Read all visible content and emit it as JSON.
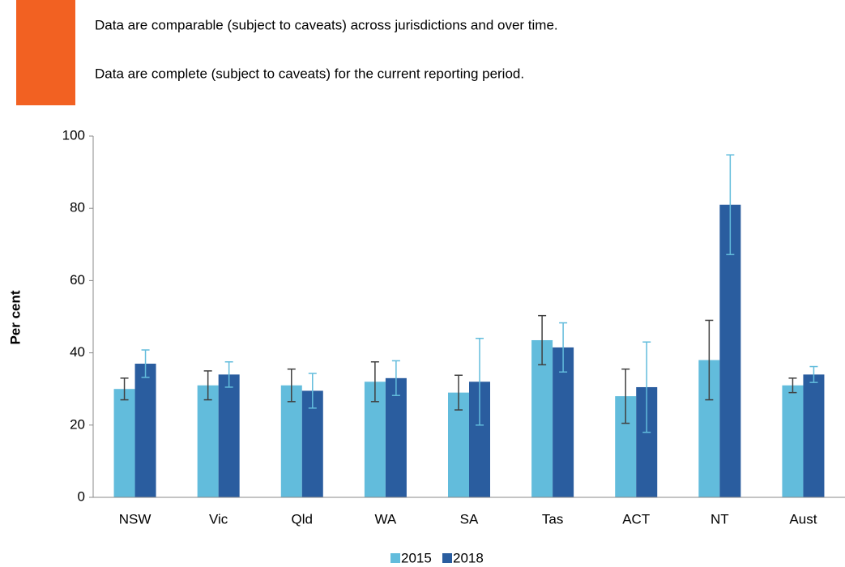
{
  "header": {
    "lines": [
      "Data are comparable (subject to caveats) across jurisdictions and over time.",
      "Data are complete (subject to caveats) for the current reporting period."
    ],
    "badge_color": "#f26122"
  },
  "chart_data": {
    "type": "bar",
    "ylabel": "Per cent",
    "categories": [
      "NSW",
      "Vic",
      "Qld",
      "WA",
      "SA",
      "Tas",
      "ACT",
      "NT",
      "Aust"
    ],
    "series": [
      {
        "name": "2015",
        "color": "#62bcdc",
        "error_color": "#404040",
        "values": [
          30,
          31,
          31,
          32,
          29,
          43.5,
          28,
          38,
          31
        ],
        "errors": [
          3,
          4,
          4.5,
          5.5,
          4.8,
          6.8,
          7.5,
          11,
          2
        ]
      },
      {
        "name": "2018",
        "color": "#2a5d9f",
        "error_color": "#62bcdc",
        "values": [
          37,
          34,
          29.5,
          33,
          32,
          41.5,
          30.5,
          81,
          34
        ],
        "errors": [
          3.8,
          3.5,
          4.8,
          4.8,
          12,
          6.8,
          12.5,
          13.8,
          2.2
        ]
      }
    ],
    "ylim": [
      0,
      100
    ],
    "yticks": [
      0,
      20,
      40,
      60,
      80,
      100
    ],
    "legend": "bottom"
  }
}
